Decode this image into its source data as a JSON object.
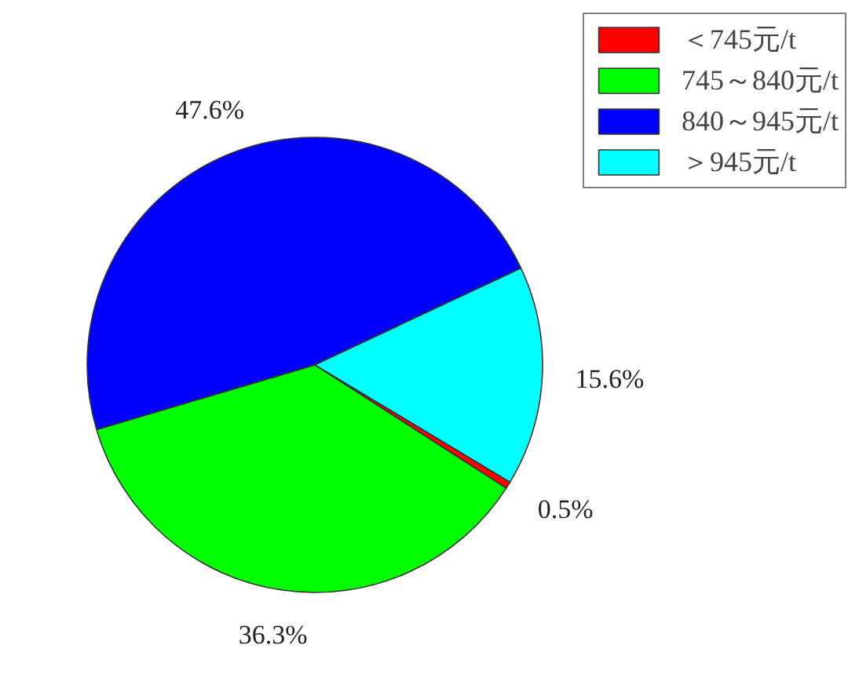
{
  "chart_data": {
    "type": "pie",
    "categories": [
      "＜745元/t",
      "745～840元/t",
      "840～945元/t",
      "＞945元/t"
    ],
    "values": [
      0.5,
      36.3,
      47.6,
      15.6
    ],
    "colors": [
      "#ff0000",
      "#00ff00",
      "#0000ff",
      "#00ffff"
    ],
    "value_labels": [
      "0.5%",
      "36.3%",
      "47.6%",
      "15.6%"
    ],
    "legend": "top right"
  }
}
